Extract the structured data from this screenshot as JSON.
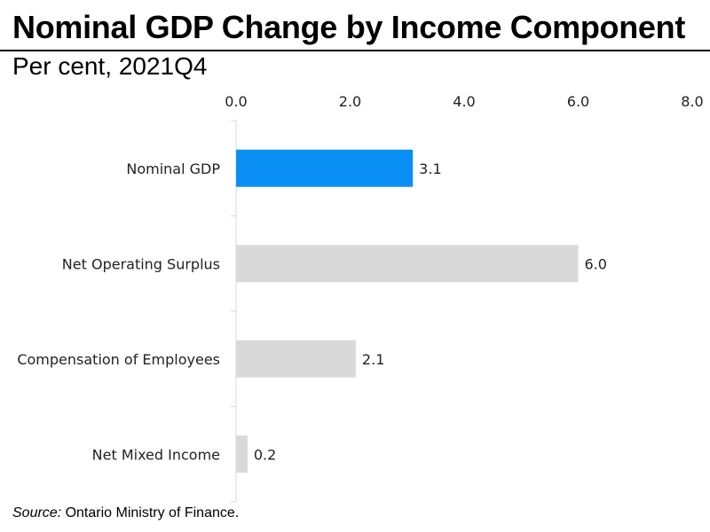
{
  "chart_data": {
    "type": "bar",
    "orientation": "horizontal",
    "title": "Nominal GDP Change by Income Component",
    "subtitle": "Per cent, 2021Q4",
    "categories": [
      "Nominal GDP",
      "Net Operating Surplus",
      "Compensation of Employees",
      "Net Mixed Income"
    ],
    "values": [
      3.1,
      6.0,
      2.1,
      0.2
    ],
    "data_labels": [
      "3.1",
      "6.0",
      "2.1",
      "0.2"
    ],
    "xlim": [
      0,
      8
    ],
    "ticks": [
      "0.0",
      "2.0",
      "4.0",
      "6.0",
      "8.0"
    ],
    "tick_values": [
      0,
      2,
      4,
      6,
      8
    ],
    "axis_position": "top",
    "grid": false,
    "colors": {
      "highlight": "#0a8ff5",
      "default": "#d9d9d9"
    },
    "highlight_index": 0
  },
  "source": {
    "label": "Source:",
    "text": " Ontario Ministry of Finance."
  }
}
